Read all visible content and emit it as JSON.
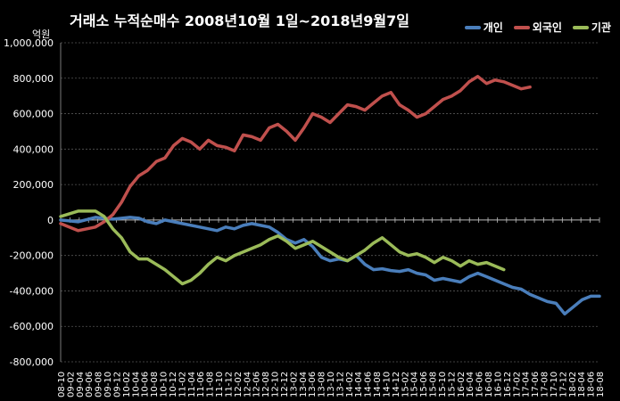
{
  "chart_data": {
    "type": "line",
    "title": "거래소 누적순매수 2008년10월 1일~2018년9월7일",
    "unit_label": "억원",
    "ylim": [
      -800000,
      1000000
    ],
    "yticks": [
      -800000,
      -600000,
      -400000,
      -200000,
      0,
      200000,
      400000,
      600000,
      800000,
      1000000
    ],
    "ytick_labels": [
      "-800,000",
      "-600,000",
      "-400,000",
      "-200,000",
      "0",
      "200,000",
      "400,000",
      "600,000",
      "800,000",
      "1,000,000"
    ],
    "grid": "horizontal-dashed",
    "legend_position": "top-right",
    "x_labels": [
      "08-10",
      "09-02",
      "09-06",
      "09-10",
      "10-02",
      "10-06",
      "10-10",
      "11-02",
      "11-06",
      "11-10",
      "12-02",
      "12-06",
      "12-10",
      "13-02",
      "13-06",
      "13-10",
      "14-02",
      "14-06",
      "14-10",
      "15-02",
      "15-06",
      "15-10",
      "16-02",
      "16-06",
      "16-10",
      "17-02",
      "17-06",
      "17-10",
      "18-02",
      "18-06"
    ],
    "x_labels_shown": [
      "08-10",
      "09-02",
      "09-04",
      "09-06",
      "09-08",
      "09-10",
      "09-12",
      "10-02",
      "10-04",
      "10-06",
      "10-08",
      "10-10",
      "10-12",
      "11-02",
      "11-04",
      "11-06",
      "11-08",
      "11-10",
      "11-12",
      "12-02",
      "12-04",
      "12-06",
      "12-08",
      "12-10",
      "12-12",
      "13-02",
      "13-04",
      "13-06",
      "13-08",
      "13-10",
      "13-12",
      "14-02",
      "14-04",
      "14-06",
      "14-08",
      "14-10",
      "14-12",
      "15-02",
      "15-04",
      "15-06",
      "15-08",
      "15-10",
      "15-12",
      "16-02",
      "16-04",
      "16-06",
      "16-08",
      "16-10",
      "16-12",
      "17-02",
      "17-04",
      "17-06",
      "17-08",
      "17-10",
      "17-12",
      "18-02",
      "18-04",
      "18-06",
      "18-08"
    ],
    "series": [
      {
        "name": "개인",
        "color": "#4A7EBB",
        "points": [
          [
            0,
            0
          ],
          [
            2,
            -10000
          ],
          [
            4,
            15000
          ],
          [
            5,
            10000
          ],
          [
            6,
            5000
          ],
          [
            8,
            15000
          ],
          [
            9,
            10000
          ],
          [
            10,
            -10000
          ],
          [
            11,
            -20000
          ],
          [
            12,
            0
          ],
          [
            14,
            -20000
          ],
          [
            16,
            -40000
          ],
          [
            18,
            -60000
          ],
          [
            19,
            -40000
          ],
          [
            20,
            -50000
          ],
          [
            21,
            -30000
          ],
          [
            22,
            -20000
          ],
          [
            23,
            -30000
          ],
          [
            24,
            -40000
          ],
          [
            25,
            -70000
          ],
          [
            26,
            -110000
          ],
          [
            27,
            -130000
          ],
          [
            28,
            -110000
          ],
          [
            29,
            -150000
          ],
          [
            30,
            -210000
          ],
          [
            31,
            -230000
          ],
          [
            32,
            -220000
          ],
          [
            33,
            -230000
          ],
          [
            34,
            -200000
          ],
          [
            35,
            -250000
          ],
          [
            36,
            -280000
          ],
          [
            37,
            -275000
          ],
          [
            38,
            -285000
          ],
          [
            39,
            -290000
          ],
          [
            40,
            -280000
          ],
          [
            41,
            -300000
          ],
          [
            42,
            -310000
          ],
          [
            43,
            -340000
          ],
          [
            44,
            -330000
          ],
          [
            45,
            -340000
          ],
          [
            46,
            -350000
          ],
          [
            47,
            -320000
          ],
          [
            48,
            -300000
          ],
          [
            49,
            -320000
          ],
          [
            50,
            -340000
          ],
          [
            51,
            -360000
          ],
          [
            52,
            -380000
          ],
          [
            53,
            -390000
          ],
          [
            54,
            -420000
          ],
          [
            55,
            -440000
          ],
          [
            56,
            -460000
          ],
          [
            57,
            -470000
          ],
          [
            58,
            -530000
          ],
          [
            59,
            -490000
          ],
          [
            60,
            -450000
          ],
          [
            61,
            -430000
          ],
          [
            62,
            -430000
          ]
        ]
      },
      {
        "name": "외국인",
        "color": "#C0504D",
        "points": [
          [
            0,
            -20000
          ],
          [
            2,
            -60000
          ],
          [
            4,
            -40000
          ],
          [
            5,
            -10000
          ],
          [
            6,
            30000
          ],
          [
            7,
            100000
          ],
          [
            8,
            190000
          ],
          [
            9,
            250000
          ],
          [
            10,
            280000
          ],
          [
            11,
            330000
          ],
          [
            12,
            350000
          ],
          [
            13,
            420000
          ],
          [
            14,
            460000
          ],
          [
            15,
            440000
          ],
          [
            16,
            400000
          ],
          [
            17,
            450000
          ],
          [
            18,
            420000
          ],
          [
            19,
            410000
          ],
          [
            20,
            390000
          ],
          [
            21,
            480000
          ],
          [
            22,
            470000
          ],
          [
            23,
            450000
          ],
          [
            24,
            520000
          ],
          [
            25,
            540000
          ],
          [
            26,
            500000
          ],
          [
            27,
            450000
          ],
          [
            28,
            520000
          ],
          [
            29,
            600000
          ],
          [
            30,
            580000
          ],
          [
            31,
            550000
          ],
          [
            32,
            600000
          ],
          [
            33,
            650000
          ],
          [
            34,
            640000
          ],
          [
            35,
            620000
          ],
          [
            36,
            660000
          ],
          [
            37,
            700000
          ],
          [
            38,
            720000
          ],
          [
            39,
            650000
          ],
          [
            40,
            620000
          ],
          [
            41,
            580000
          ],
          [
            42,
            600000
          ],
          [
            43,
            640000
          ],
          [
            44,
            680000
          ],
          [
            45,
            700000
          ],
          [
            46,
            730000
          ],
          [
            47,
            780000
          ],
          [
            48,
            810000
          ],
          [
            49,
            770000
          ],
          [
            50,
            790000
          ],
          [
            51,
            780000
          ],
          [
            52,
            760000
          ],
          [
            53,
            740000
          ],
          [
            54,
            750000
          ]
        ]
      },
      {
        "name": "기관",
        "color": "#9BBB59",
        "points": [
          [
            0,
            20000
          ],
          [
            2,
            50000
          ],
          [
            4,
            50000
          ],
          [
            5,
            20000
          ],
          [
            6,
            -50000
          ],
          [
            7,
            -100000
          ],
          [
            8,
            -180000
          ],
          [
            9,
            -220000
          ],
          [
            10,
            -220000
          ],
          [
            11,
            -250000
          ],
          [
            12,
            -280000
          ],
          [
            13,
            -320000
          ],
          [
            14,
            -360000
          ],
          [
            15,
            -340000
          ],
          [
            16,
            -300000
          ],
          [
            17,
            -250000
          ],
          [
            18,
            -210000
          ],
          [
            19,
            -230000
          ],
          [
            20,
            -200000
          ],
          [
            21,
            -180000
          ],
          [
            22,
            -160000
          ],
          [
            23,
            -140000
          ],
          [
            24,
            -110000
          ],
          [
            25,
            -90000
          ],
          [
            26,
            -120000
          ],
          [
            27,
            -160000
          ],
          [
            28,
            -140000
          ],
          [
            29,
            -120000
          ],
          [
            30,
            -150000
          ],
          [
            31,
            -180000
          ],
          [
            32,
            -210000
          ],
          [
            33,
            -230000
          ],
          [
            34,
            -200000
          ],
          [
            35,
            -170000
          ],
          [
            36,
            -130000
          ],
          [
            37,
            -100000
          ],
          [
            38,
            -140000
          ],
          [
            39,
            -180000
          ],
          [
            40,
            -200000
          ],
          [
            41,
            -190000
          ],
          [
            42,
            -210000
          ],
          [
            43,
            -240000
          ],
          [
            44,
            -210000
          ],
          [
            45,
            -230000
          ],
          [
            46,
            -260000
          ],
          [
            47,
            -230000
          ],
          [
            48,
            -250000
          ],
          [
            49,
            -240000
          ],
          [
            50,
            -260000
          ],
          [
            51,
            -280000
          ]
        ]
      }
    ]
  }
}
